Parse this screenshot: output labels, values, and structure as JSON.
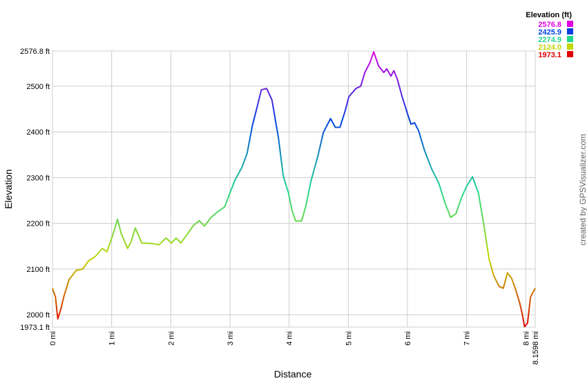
{
  "chart_data": {
    "type": "line",
    "x_label": "Distance",
    "y_label": "Elevation",
    "legend_title": "Elevation (ft)",
    "color_scale": [
      {
        "value": 2576.8,
        "label": "2576.8",
        "color": "#e000e0"
      },
      {
        "value": 2425.9,
        "label": "2425.9",
        "color": "#0040e0"
      },
      {
        "value": 2274.9,
        "label": "2274.9",
        "color": "#20d890"
      },
      {
        "value": 2124.0,
        "label": "2124.0",
        "color": "#c0d800"
      },
      {
        "value": 1973.1,
        "label": "1973.1",
        "color": "#e00000"
      }
    ],
    "credit": "created by GPSVisualizer.com",
    "xlim": [
      0,
      8.1598
    ],
    "xticks": [
      {
        "value": 0,
        "label": "0 mi"
      },
      {
        "value": 1,
        "label": "1 mi"
      },
      {
        "value": 2,
        "label": "2 mi"
      },
      {
        "value": 3,
        "label": "3 mi"
      },
      {
        "value": 4,
        "label": "4 mi"
      },
      {
        "value": 5,
        "label": "5 mi"
      },
      {
        "value": 6,
        "label": "6 mi"
      },
      {
        "value": 7,
        "label": "7 mi"
      },
      {
        "value": 8,
        "label": "8 mi"
      },
      {
        "value": 8.1598,
        "label": "8.1598 mi"
      }
    ],
    "ylim": [
      1973.1,
      2576.8
    ],
    "yticks": [
      {
        "value": 1973.1,
        "label": "1973.1 ft"
      },
      {
        "value": 2000,
        "label": "2000 ft"
      },
      {
        "value": 2100,
        "label": "2100 ft"
      },
      {
        "value": 2200,
        "label": "2200 ft"
      },
      {
        "value": 2300,
        "label": "2300 ft"
      },
      {
        "value": 2400,
        "label": "2400 ft"
      },
      {
        "value": 2500,
        "label": "2500 ft"
      },
      {
        "value": 2576.8,
        "label": "2576.8 ft"
      }
    ],
    "grid": true,
    "x": [
      0,
      0.05,
      0.09,
      0.14,
      0.19,
      0.28,
      0.4,
      0.51,
      0.61,
      0.72,
      0.84,
      0.92,
      0.98,
      1.04,
      1.1,
      1.16,
      1.27,
      1.33,
      1.4,
      1.45,
      1.51,
      1.68,
      1.8,
      1.92,
      2.01,
      2.09,
      2.17,
      2.27,
      2.38,
      2.48,
      2.57,
      2.68,
      2.79,
      2.91,
      2.99,
      3.08,
      3.2,
      3.29,
      3.38,
      3.46,
      3.53,
      3.62,
      3.71,
      3.82,
      3.9,
      3.99,
      4.05,
      4.11,
      4.21,
      4.28,
      4.37,
      4.49,
      4.58,
      4.7,
      4.78,
      4.86,
      4.95,
      5.01,
      5.13,
      5.21,
      5.28,
      5.36,
      5.43,
      5.51,
      5.6,
      5.65,
      5.72,
      5.77,
      5.83,
      5.91,
      6.0,
      6.06,
      6.12,
      6.19,
      6.29,
      6.41,
      6.53,
      6.64,
      6.73,
      6.82,
      6.92,
      7.0,
      7.1,
      7.2,
      7.29,
      7.38,
      7.46,
      7.55,
      7.62,
      7.69,
      7.76,
      7.83,
      7.9,
      7.94,
      7.98,
      8.03,
      8.08,
      8.1598
    ],
    "values": [
      2057.6,
      2039,
      1991,
      2012,
      2039,
      2077,
      2097,
      2100,
      2118,
      2127,
      2145,
      2138,
      2160,
      2183,
      2209,
      2178,
      2145,
      2160,
      2190,
      2175,
      2157,
      2156,
      2153,
      2168,
      2157,
      2168,
      2157,
      2175,
      2195,
      2206,
      2194,
      2213,
      2225,
      2236,
      2263,
      2293,
      2322,
      2353,
      2414,
      2455,
      2492,
      2495,
      2470,
      2387,
      2304,
      2266,
      2228,
      2205,
      2205,
      2236,
      2293,
      2349,
      2399,
      2429,
      2410,
      2410,
      2447,
      2477,
      2495,
      2500,
      2530,
      2550,
      2575,
      2545,
      2530,
      2538,
      2522,
      2534,
      2515,
      2477,
      2440,
      2417,
      2420,
      2402,
      2359,
      2319,
      2288,
      2243,
      2213,
      2221,
      2258,
      2281,
      2302,
      2266,
      2198,
      2122,
      2085,
      2062,
      2058,
      2092,
      2080,
      2055,
      2025,
      2002,
      1974,
      1982,
      2039,
      2058
    ]
  }
}
